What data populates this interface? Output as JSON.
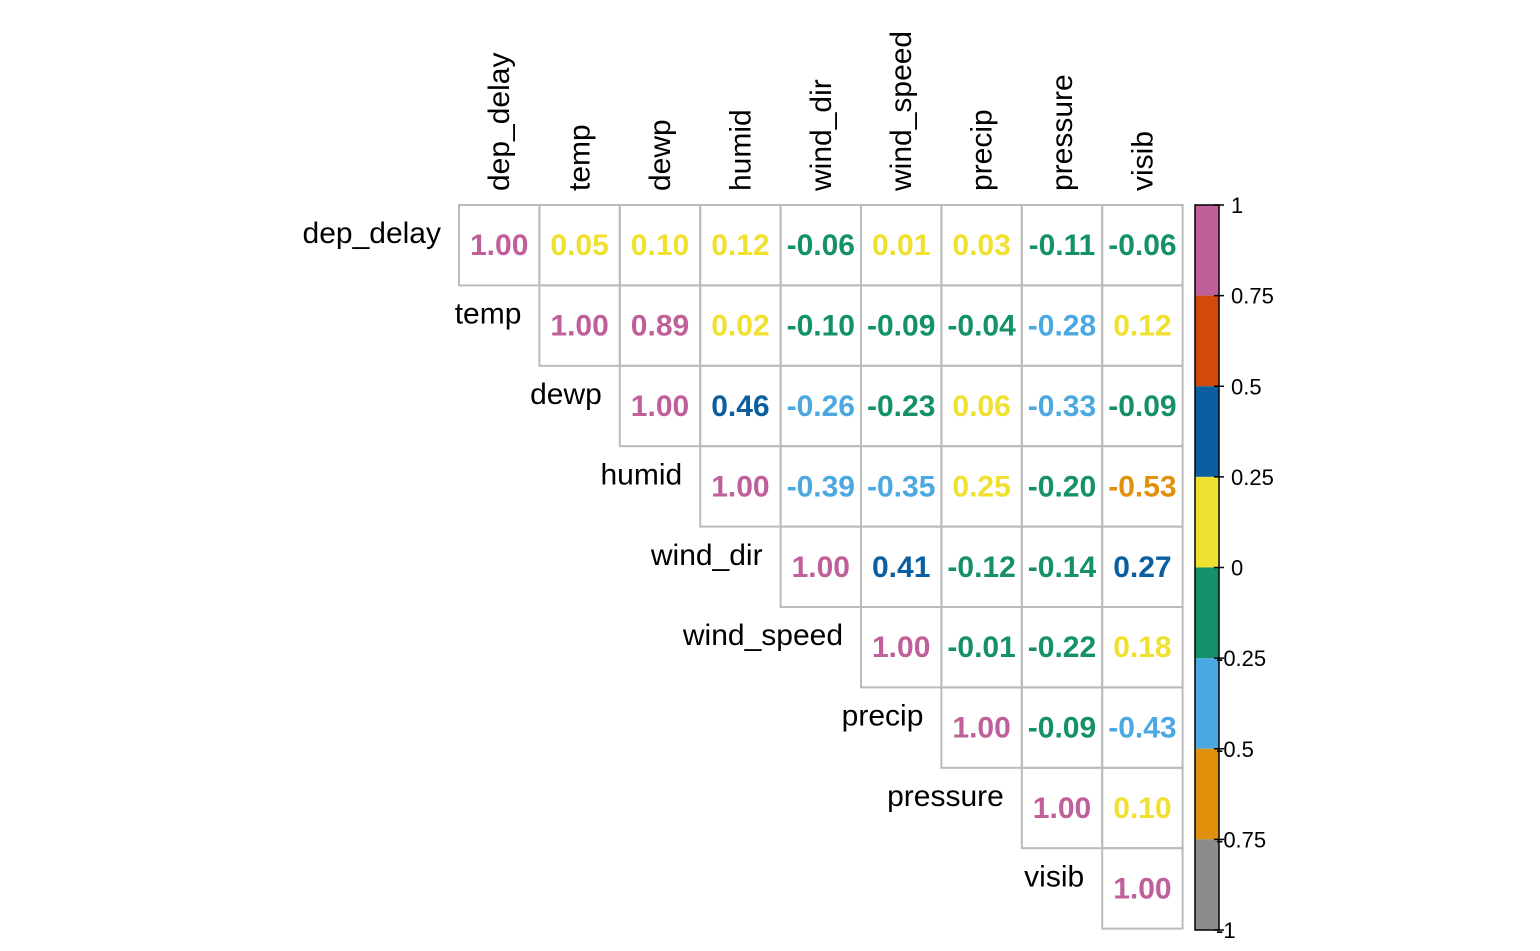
{
  "chart_data": {
    "type": "heatmap",
    "variables": [
      "dep_delay",
      "temp",
      "dewp",
      "humid",
      "wind_dir",
      "wind_speed",
      "precip",
      "pressure",
      "visib"
    ],
    "matrix": [
      [
        1.0,
        0.05,
        0.1,
        0.12,
        -0.06,
        0.01,
        0.03,
        -0.11,
        -0.06
      ],
      [
        null,
        1.0,
        0.89,
        0.02,
        -0.1,
        -0.09,
        -0.04,
        -0.28,
        0.12
      ],
      [
        null,
        null,
        1.0,
        0.46,
        -0.26,
        -0.23,
        0.06,
        -0.33,
        -0.09
      ],
      [
        null,
        null,
        null,
        1.0,
        -0.39,
        -0.35,
        0.25,
        -0.2,
        -0.53
      ],
      [
        null,
        null,
        null,
        null,
        1.0,
        0.41,
        -0.12,
        -0.14,
        0.27
      ],
      [
        null,
        null,
        null,
        null,
        null,
        1.0,
        -0.01,
        -0.22,
        0.18
      ],
      [
        null,
        null,
        null,
        null,
        null,
        null,
        1.0,
        -0.09,
        -0.43
      ],
      [
        null,
        null,
        null,
        null,
        null,
        null,
        null,
        1.0,
        0.1
      ],
      [
        null,
        null,
        null,
        null,
        null,
        null,
        null,
        null,
        1.0
      ]
    ],
    "colorbar": {
      "range": [
        -1,
        1
      ],
      "ticks": [
        "1",
        "0.75",
        "0.5",
        "0.25",
        "0",
        "-0.25",
        "-0.5",
        "-0.75",
        "-1"
      ],
      "bins": [
        {
          "from": 0.75,
          "to": 1.0,
          "color": "#c0609a"
        },
        {
          "from": 0.5,
          "to": 0.75,
          "color": "#d14a0c"
        },
        {
          "from": 0.25,
          "to": 0.5,
          "color": "#0a5fa0"
        },
        {
          "from": 0.0,
          "to": 0.25,
          "color": "#f0e030"
        },
        {
          "from": -0.25,
          "to": 0.0,
          "color": "#14916a"
        },
        {
          "from": -0.5,
          "to": -0.25,
          "color": "#4ba8e0"
        },
        {
          "from": -0.75,
          "to": -0.5,
          "color": "#e0900a"
        },
        {
          "from": -1.0,
          "to": -0.75,
          "color": "#8c8c8c"
        }
      ]
    },
    "grid_color": "#bbbbbb",
    "upper_triangle_only": true
  }
}
